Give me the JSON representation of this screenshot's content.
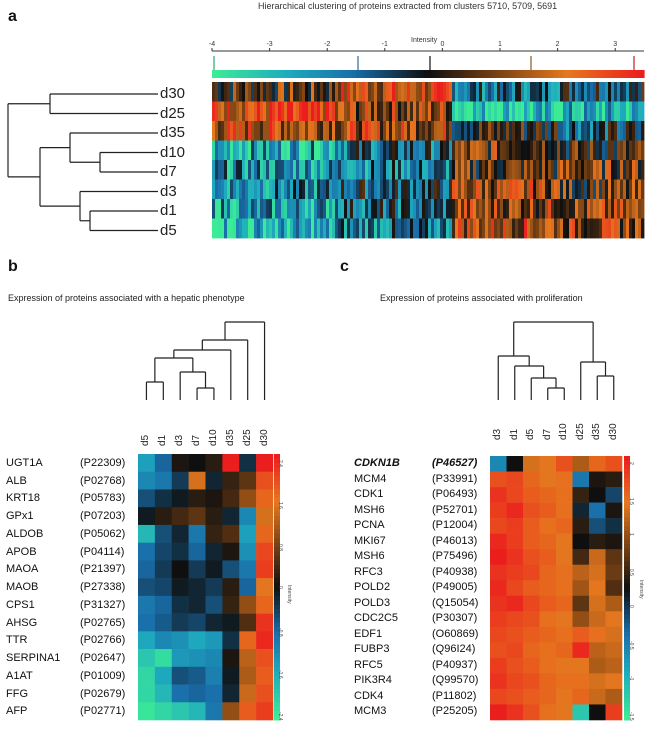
{
  "panel_a": {
    "label": "a",
    "title": "Hierarchical clustering of proteins extracted from clusters 5710, 5709, 5691",
    "intensity_label": "Intensity",
    "scale_ticks": [
      "-4",
      "-3",
      "-2",
      "-1",
      "0",
      "1",
      "2",
      "3"
    ],
    "rows": [
      "d30",
      "d25",
      "d35",
      "d10",
      "d7",
      "d3",
      "d1",
      "d5"
    ],
    "row_colors": [
      "#1e1e1e",
      "#1e1e1e",
      "#1e1e1e",
      "#1e1e1e",
      "#1e1e1e",
      "#1e1e1e",
      "#1e1e1e",
      "#1e1e1e"
    ]
  },
  "panel_b": {
    "label": "b",
    "subtitle": "Expression of proteins associated with a hepatic phenotype",
    "columns": [
      "d5",
      "d1",
      "d3",
      "d7",
      "d10",
      "d35",
      "d25",
      "d30"
    ],
    "genes": [
      {
        "gene": "UGT1A",
        "acc": "(P22309)"
      },
      {
        "gene": "ALB",
        "acc": "(P02768)"
      },
      {
        "gene": "KRT18",
        "acc": "(P05783)"
      },
      {
        "gene": "GPx1",
        "acc": "(P07203)"
      },
      {
        "gene": "ALDOB",
        "acc": "(P05062)"
      },
      {
        "gene": "APOB",
        "acc": "(P04114)"
      },
      {
        "gene": "MAOA",
        "acc": "(P21397)"
      },
      {
        "gene": "MAOB",
        "acc": "(P27338)"
      },
      {
        "gene": "CPS1",
        "acc": "(P31327)"
      },
      {
        "gene": "AHSG",
        "acc": "(P02765)"
      },
      {
        "gene": "TTR",
        "acc": "(P02766)"
      },
      {
        "gene": "SERPINA1",
        "acc": "(P02647)"
      },
      {
        "gene": "A1AT",
        "acc": "(P01009)"
      },
      {
        "gene": "FFG",
        "acc": "(P02679)"
      },
      {
        "gene": "AFP",
        "acc": "(P02771)"
      }
    ],
    "colorbar_ticks": [
      "2.4",
      "1.6",
      "0.8",
      "0",
      "-0.8",
      "-1.6",
      "-2.4"
    ],
    "colorbar_label": "Intensity",
    "matrix": [
      [
        -1.5,
        -0.8,
        0.1,
        0.0,
        0.2,
        2.5,
        -0.3,
        2.6
      ],
      [
        -1.2,
        -1.0,
        -0.4,
        1.5,
        -0.2,
        0.3,
        0.6,
        2.0
      ],
      [
        -0.6,
        -0.3,
        -0.1,
        0.2,
        0.1,
        0.4,
        1.0,
        1.8
      ],
      [
        -0.1,
        0.2,
        0.4,
        0.6,
        0.2,
        -0.2,
        -1.2,
        1.5
      ],
      [
        -1.8,
        -0.6,
        -0.2,
        -1.0,
        0.3,
        0.5,
        -1.5,
        1.8
      ],
      [
        -0.9,
        -0.5,
        -0.3,
        -0.8,
        -0.2,
        0.1,
        -1.3,
        2.1
      ],
      [
        -0.8,
        -0.4,
        0.0,
        -0.4,
        -0.1,
        -0.6,
        -1.0,
        2.2
      ],
      [
        -0.6,
        -0.5,
        -0.1,
        -0.2,
        -0.4,
        0.2,
        -0.8,
        1.6
      ],
      [
        -1.0,
        -0.8,
        -0.3,
        -0.2,
        -0.6,
        0.3,
        1.0,
        1.8
      ],
      [
        -0.9,
        -0.7,
        -0.4,
        -0.5,
        -0.2,
        -0.1,
        0.5,
        2.3
      ],
      [
        -1.6,
        -1.2,
        -1.3,
        -1.6,
        -1.4,
        -0.3,
        1.8,
        2.4
      ],
      [
        -2.0,
        -2.3,
        -1.4,
        -1.3,
        -1.2,
        0.1,
        1.3,
        2.0
      ],
      [
        -2.2,
        -1.6,
        -0.6,
        -0.7,
        -1.1,
        -0.1,
        1.2,
        1.9
      ],
      [
        -2.2,
        -1.8,
        -0.9,
        -0.8,
        -0.9,
        -0.2,
        1.4,
        2.0
      ],
      [
        -2.4,
        -2.2,
        -2.0,
        -1.8,
        -1.0,
        1.0,
        1.9,
        2.2
      ]
    ]
  },
  "panel_c": {
    "label": "c",
    "subtitle": "Expression of proteins associated with proliferation",
    "columns": [
      "d3",
      "d1",
      "d5",
      "d7",
      "d10",
      "d25",
      "d35",
      "d30"
    ],
    "genes": [
      {
        "gene": "CDKN1B",
        "acc": "(P46527)",
        "emphasis": true
      },
      {
        "gene": "MCM4",
        "acc": "(P33991)"
      },
      {
        "gene": "CDK1",
        "acc": "(P06493)"
      },
      {
        "gene": "MSH6",
        "acc": "(P52701)"
      },
      {
        "gene": "PCNA",
        "acc": "(P12004)"
      },
      {
        "gene": "MKI67",
        "acc": "(P46013)"
      },
      {
        "gene": "MSH6",
        "acc": "(P75496)"
      },
      {
        "gene": "RFC3",
        "acc": "(P40938)"
      },
      {
        "gene": "POLD2",
        "acc": "(P49005)"
      },
      {
        "gene": "POLD3",
        "acc": "(Q15054)"
      },
      {
        "gene": "CDC2C5",
        "acc": "(P30307)"
      },
      {
        "gene": "EDF1",
        "acc": "(O60869)"
      },
      {
        "gene": "FUBP3",
        "acc": "(Q96I24)"
      },
      {
        "gene": "RFC5",
        "acc": "(P40937)"
      },
      {
        "gene": "PIK3R4",
        "acc": "(Q99570)"
      },
      {
        "gene": "CDK4",
        "acc": "(P11802)"
      },
      {
        "gene": "MCM3",
        "acc": "(P25205)"
      }
    ],
    "colorbar_ticks": [
      "2",
      "1.5",
      "1",
      "0.5",
      "0",
      "-0.5",
      "-1",
      "-1.5"
    ],
    "colorbar_label": "Intensity",
    "matrix": [
      [
        -1.2,
        0.0,
        1.5,
        1.6,
        2.0,
        1.2,
        1.8,
        2.0
      ],
      [
        2.0,
        2.1,
        1.8,
        1.6,
        1.7,
        -1.0,
        0.1,
        0.2
      ],
      [
        2.3,
        2.1,
        1.9,
        1.8,
        1.7,
        0.3,
        0.0,
        -0.5
      ],
      [
        2.2,
        2.4,
        2.0,
        1.9,
        1.7,
        -0.2,
        -0.9,
        0.1
      ],
      [
        2.1,
        2.2,
        1.9,
        1.7,
        1.8,
        0.2,
        -0.6,
        -0.3
      ],
      [
        2.4,
        2.2,
        1.9,
        1.8,
        1.6,
        0.0,
        0.2,
        0.1
      ],
      [
        2.5,
        2.3,
        2.0,
        1.9,
        1.6,
        0.4,
        1.4,
        0.6
      ],
      [
        2.3,
        2.2,
        2.1,
        1.8,
        1.7,
        1.3,
        1.5,
        0.7
      ],
      [
        2.4,
        2.1,
        1.9,
        1.8,
        1.7,
        1.1,
        1.6,
        0.5
      ],
      [
        2.3,
        2.4,
        2.1,
        1.9,
        1.8,
        0.6,
        1.5,
        1.2
      ],
      [
        2.2,
        2.1,
        2.0,
        1.7,
        1.6,
        1.0,
        1.4,
        1.6
      ],
      [
        2.1,
        2.0,
        1.9,
        1.8,
        1.7,
        1.9,
        1.7,
        1.5
      ],
      [
        2.0,
        2.1,
        1.8,
        1.7,
        1.8,
        2.4,
        1.3,
        1.4
      ],
      [
        2.2,
        2.0,
        1.9,
        1.7,
        1.6,
        1.6,
        1.2,
        1.3
      ],
      [
        2.3,
        2.1,
        2.0,
        1.8,
        1.7,
        1.7,
        1.5,
        1.6
      ],
      [
        2.1,
        2.0,
        1.9,
        1.8,
        1.6,
        1.8,
        1.4,
        1.2
      ],
      [
        2.5,
        2.3,
        2.0,
        1.7,
        1.6,
        -2.0,
        0.0,
        2.2
      ]
    ]
  }
}
